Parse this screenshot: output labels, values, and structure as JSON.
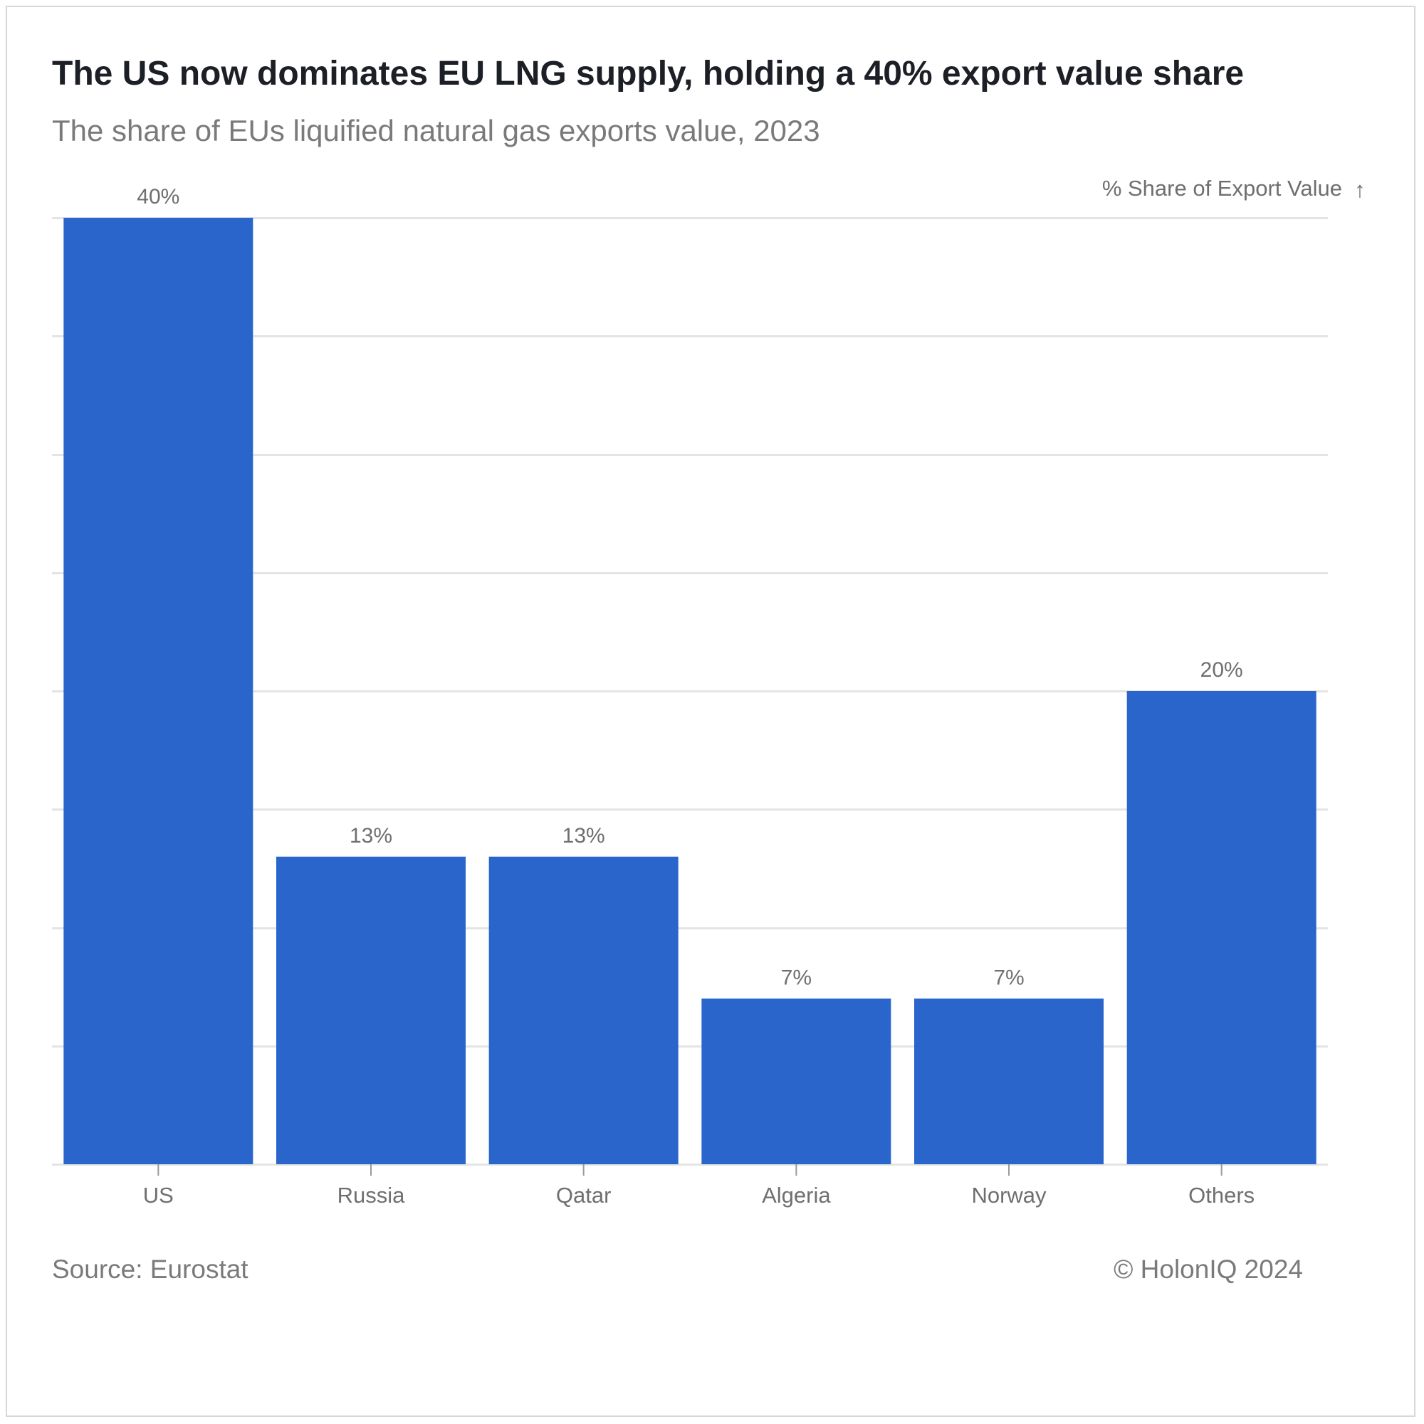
{
  "title": "The US now dominates EU LNG supply, holding a 40% export value share",
  "subtitle": "The share of EUs liquified natural gas exports value, 2023",
  "source": "Source: Eurostat",
  "credit": "© HolonIQ 2024",
  "colors": {
    "bar": "#2a65cc",
    "grid": "#e4e4e4",
    "text": "#6f6f6f"
  },
  "chart_data": {
    "type": "bar",
    "title": "The US now dominates EU LNG supply, holding a 40% export value share",
    "subtitle": "The share of EUs liquified natural gas exports value, 2023",
    "categories": [
      "US",
      "Russia",
      "Qatar",
      "Algeria",
      "Norway",
      "Others"
    ],
    "values": [
      40,
      13,
      13,
      7,
      7,
      20
    ],
    "value_labels": [
      "40%",
      "13%",
      "13%",
      "7%",
      "7%",
      "20%"
    ],
    "xlabel": "",
    "ylabel": "% Share of Export Value",
    "ylabel_arrow": "↑",
    "ylim": [
      0,
      40
    ],
    "grid_step": 5,
    "grid": true,
    "legend": "none"
  }
}
